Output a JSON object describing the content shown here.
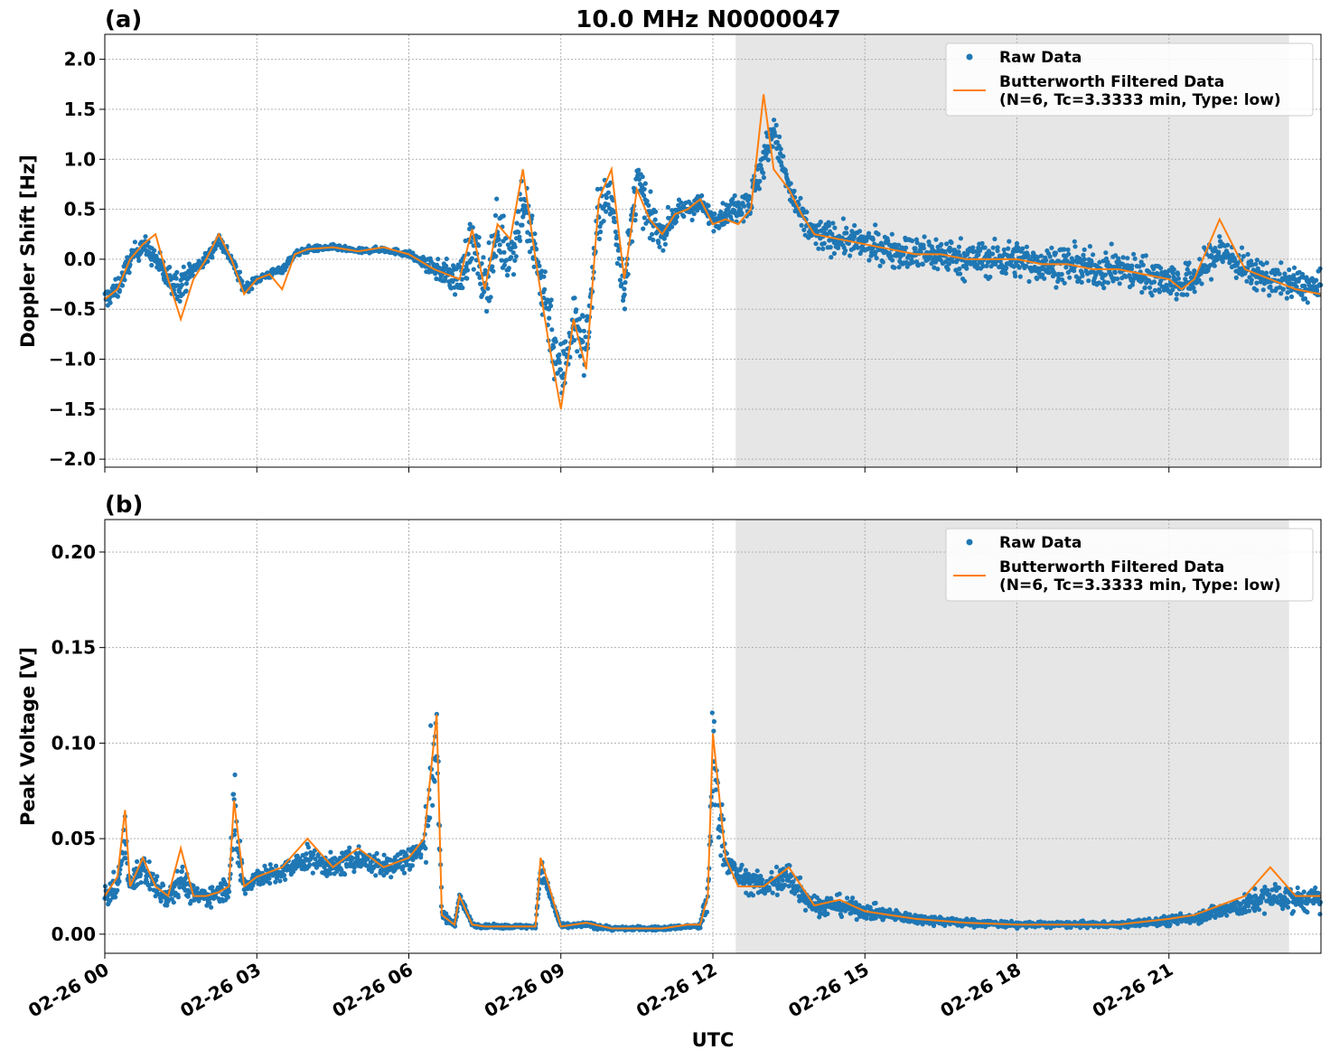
{
  "title": "10.0 MHz N0000047",
  "xlabel": "UTC",
  "x_tick_labels": [
    "02-26 00",
    "02-26 03",
    "02-26 06",
    "02-26 09",
    "02-26 12",
    "02-26 15",
    "02-26 18",
    "02-26 21"
  ],
  "colors": {
    "raw": "#1f77b4",
    "filtered": "#ff7f0e",
    "shade": "#e6e6e6",
    "grid": "#b0b0b0"
  },
  "legend": {
    "raw_label": "Raw Data",
    "filtered_label_line1": "Butterworth Filtered Data",
    "filtered_label_line2": "(N=6, Tc=3.3333 min, Type: low)",
    "placement": "top-right"
  },
  "chart_data": [
    {
      "type": "scatter",
      "panel_label": "(a)",
      "ylabel": "Doppler Shift [Hz]",
      "xlim_hours": [
        0,
        24
      ],
      "ylim": [
        -2.08,
        2.25
      ],
      "yticks": [
        -2.0,
        -1.5,
        -1.0,
        -0.5,
        0.0,
        0.5,
        1.0,
        1.5,
        2.0
      ],
      "ytick_labels": [
        "−2.0",
        "−1.5",
        "−1.0",
        "−0.5",
        "0.0",
        "0.5",
        "1.0",
        "1.5",
        "2.0"
      ],
      "grid": true,
      "shaded_interval_hours": [
        12.45,
        23.37
      ],
      "series": [
        {
          "name": "Raw Data",
          "kind": "scatter",
          "x_hours": [
            0,
            0.25,
            0.5,
            0.75,
            1.0,
            1.25,
            1.5,
            1.75,
            2.0,
            2.25,
            2.5,
            2.75,
            3.0,
            3.25,
            3.5,
            3.75,
            4.0,
            4.5,
            5.0,
            5.5,
            6.0,
            6.5,
            7.0,
            7.25,
            7.5,
            7.75,
            8.0,
            8.25,
            8.5,
            8.75,
            9.0,
            9.25,
            9.5,
            9.75,
            10.0,
            10.25,
            10.5,
            10.75,
            11.0,
            11.25,
            11.5,
            11.75,
            12.0,
            12.25,
            12.5,
            12.75,
            13.0,
            13.2,
            13.5,
            13.75,
            14.0,
            14.5,
            15.0,
            15.5,
            16.0,
            16.5,
            17.0,
            17.5,
            18.0,
            18.5,
            19.0,
            19.5,
            20.0,
            20.5,
            21.0,
            21.25,
            21.5,
            22.0,
            22.5,
            23.0,
            23.5,
            24.0
          ],
          "y_center": [
            -0.4,
            -0.3,
            0.0,
            0.15,
            0.0,
            -0.2,
            -0.25,
            -0.1,
            0.0,
            0.2,
            0.0,
            -0.3,
            -0.2,
            -0.15,
            -0.1,
            0.05,
            0.1,
            0.12,
            0.08,
            0.1,
            0.05,
            -0.1,
            -0.2,
            0.2,
            -0.3,
            0.3,
            0.0,
            0.6,
            0.0,
            -0.5,
            -1.2,
            -0.6,
            -0.9,
            0.5,
            0.6,
            -0.3,
            0.8,
            0.4,
            0.25,
            0.45,
            0.5,
            0.55,
            0.4,
            0.45,
            0.55,
            0.6,
            1.0,
            1.3,
            0.7,
            0.4,
            0.25,
            0.2,
            0.15,
            0.1,
            0.05,
            0.05,
            0.0,
            0.0,
            0.0,
            -0.05,
            -0.05,
            -0.1,
            -0.1,
            -0.15,
            -0.2,
            -0.25,
            -0.2,
            0.1,
            -0.1,
            -0.2,
            -0.25,
            -0.3
          ],
          "y_spread": [
            0.2,
            0.2,
            0.2,
            0.2,
            0.2,
            0.3,
            0.3,
            0.15,
            0.12,
            0.15,
            0.12,
            0.1,
            0.08,
            0.08,
            0.08,
            0.06,
            0.06,
            0.05,
            0.05,
            0.05,
            0.06,
            0.15,
            0.4,
            0.5,
            0.6,
            0.6,
            0.6,
            0.7,
            0.7,
            0.7,
            0.7,
            0.6,
            0.6,
            0.6,
            0.5,
            0.5,
            0.5,
            0.4,
            0.3,
            0.2,
            0.2,
            0.2,
            0.2,
            0.2,
            0.3,
            0.35,
            0.4,
            0.3,
            0.3,
            0.3,
            0.3,
            0.3,
            0.3,
            0.3,
            0.35,
            0.35,
            0.35,
            0.35,
            0.35,
            0.35,
            0.35,
            0.35,
            0.35,
            0.35,
            0.35,
            0.35,
            0.35,
            0.35,
            0.3,
            0.3,
            0.3,
            0.3
          ]
        },
        {
          "name": "Butterworth Filtered Data (N=6, Tc=3.3333 min, Type: low)",
          "kind": "line",
          "x_hours": [
            0,
            0.25,
            0.5,
            0.75,
            1.0,
            1.25,
            1.5,
            1.75,
            2.0,
            2.25,
            2.5,
            2.75,
            3.0,
            3.25,
            3.5,
            3.75,
            4.0,
            4.5,
            5.0,
            5.5,
            6.0,
            6.5,
            7.0,
            7.25,
            7.5,
            7.75,
            8.0,
            8.25,
            8.5,
            8.75,
            9.0,
            9.25,
            9.5,
            9.75,
            10.0,
            10.25,
            10.5,
            10.75,
            11.0,
            11.25,
            11.5,
            11.75,
            12.0,
            12.25,
            12.5,
            12.75,
            13.0,
            13.2,
            13.5,
            13.75,
            14.0,
            14.5,
            15.0,
            15.5,
            16.0,
            16.5,
            17.0,
            17.5,
            18.0,
            18.5,
            19.0,
            19.5,
            20.0,
            20.5,
            21.0,
            21.25,
            21.5,
            22.0,
            22.5,
            23.0,
            23.5,
            24.0
          ],
          "y": [
            -0.4,
            -0.3,
            0.0,
            0.15,
            0.25,
            -0.2,
            -0.6,
            -0.2,
            0.0,
            0.25,
            0.0,
            -0.35,
            -0.2,
            -0.15,
            -0.3,
            0.05,
            0.1,
            0.12,
            0.08,
            0.12,
            0.05,
            -0.1,
            -0.2,
            0.3,
            -0.3,
            0.35,
            0.2,
            0.9,
            0.0,
            -0.8,
            -1.5,
            -0.6,
            -1.1,
            0.6,
            0.9,
            -0.2,
            0.7,
            0.4,
            0.25,
            0.45,
            0.5,
            0.6,
            0.35,
            0.4,
            0.35,
            0.5,
            1.65,
            0.9,
            0.7,
            0.45,
            0.25,
            0.2,
            0.15,
            0.1,
            0.05,
            0.05,
            0.0,
            0.0,
            0.0,
            -0.05,
            -0.05,
            -0.1,
            -0.1,
            -0.15,
            -0.2,
            -0.3,
            -0.2,
            0.4,
            -0.1,
            -0.2,
            -0.3,
            -0.35
          ]
        }
      ]
    },
    {
      "type": "scatter",
      "panel_label": "(b)",
      "ylabel": "Peak Voltage [V]",
      "xlim_hours": [
        0,
        24
      ],
      "ylim": [
        -0.01,
        0.217
      ],
      "yticks": [
        0.0,
        0.05,
        0.1,
        0.15,
        0.2
      ],
      "ytick_labels": [
        "0.00",
        "0.05",
        "0.10",
        "0.15",
        "0.20"
      ],
      "grid": true,
      "shaded_interval_hours": [
        12.45,
        23.37
      ],
      "series": [
        {
          "name": "Raw Data",
          "kind": "scatter",
          "x_hours": [
            0,
            0.25,
            0.4,
            0.5,
            0.75,
            1.0,
            1.25,
            1.5,
            1.75,
            2.0,
            2.25,
            2.45,
            2.55,
            2.75,
            3.0,
            3.5,
            4.0,
            4.5,
            5.0,
            5.5,
            6.0,
            6.3,
            6.55,
            6.65,
            6.9,
            7.0,
            7.25,
            7.5,
            8.0,
            8.5,
            8.6,
            9.0,
            9.5,
            10.0,
            10.5,
            11.0,
            11.5,
            11.75,
            11.9,
            12.0,
            12.25,
            12.5,
            13.0,
            13.5,
            14.0,
            14.5,
            15.0,
            15.5,
            16.0,
            17.0,
            18.0,
            19.0,
            20.0,
            21.0,
            21.5,
            22.0,
            22.5,
            23.0,
            23.5,
            24.0
          ],
          "y_center": [
            0.02,
            0.025,
            0.05,
            0.025,
            0.035,
            0.025,
            0.02,
            0.03,
            0.02,
            0.02,
            0.022,
            0.025,
            0.06,
            0.025,
            0.03,
            0.032,
            0.04,
            0.035,
            0.04,
            0.035,
            0.04,
            0.045,
            0.11,
            0.01,
            0.005,
            0.02,
            0.005,
            0.004,
            0.004,
            0.004,
            0.035,
            0.004,
            0.005,
            0.003,
            0.003,
            0.003,
            0.004,
            0.004,
            0.02,
            0.09,
            0.04,
            0.03,
            0.025,
            0.03,
            0.015,
            0.015,
            0.012,
            0.01,
            0.008,
            0.006,
            0.005,
            0.005,
            0.005,
            0.007,
            0.009,
            0.012,
            0.015,
            0.02,
            0.018,
            0.018
          ],
          "y_spread": [
            0.012,
            0.012,
            0.025,
            0.012,
            0.015,
            0.015,
            0.012,
            0.015,
            0.01,
            0.01,
            0.01,
            0.012,
            0.05,
            0.01,
            0.01,
            0.01,
            0.012,
            0.012,
            0.012,
            0.012,
            0.015,
            0.015,
            0.08,
            0.005,
            0.004,
            0.005,
            0.002,
            0.002,
            0.002,
            0.002,
            0.01,
            0.002,
            0.003,
            0.002,
            0.002,
            0.002,
            0.002,
            0.003,
            0.02,
            0.07,
            0.015,
            0.012,
            0.012,
            0.02,
            0.01,
            0.01,
            0.008,
            0.006,
            0.005,
            0.004,
            0.003,
            0.003,
            0.003,
            0.005,
            0.006,
            0.008,
            0.01,
            0.015,
            0.012,
            0.012
          ]
        },
        {
          "name": "Butterworth Filtered Data (N=6, Tc=3.3333 min, Type: low)",
          "kind": "line",
          "x_hours": [
            0,
            0.25,
            0.4,
            0.5,
            0.75,
            1.0,
            1.25,
            1.5,
            1.75,
            2.0,
            2.25,
            2.45,
            2.55,
            2.75,
            3.0,
            3.5,
            4.0,
            4.5,
            5.0,
            5.5,
            6.0,
            6.3,
            6.55,
            6.65,
            6.9,
            7.0,
            7.25,
            7.5,
            8.0,
            8.5,
            8.6,
            9.0,
            9.5,
            10.0,
            10.5,
            11.0,
            11.5,
            11.75,
            11.9,
            12.0,
            12.25,
            12.5,
            13.0,
            13.5,
            14.0,
            14.5,
            15.0,
            15.5,
            16.0,
            17.0,
            18.0,
            19.0,
            20.0,
            21.0,
            21.5,
            22.0,
            22.5,
            23.0,
            23.5,
            24.0
          ],
          "y": [
            0.02,
            0.03,
            0.065,
            0.025,
            0.04,
            0.025,
            0.02,
            0.045,
            0.02,
            0.02,
            0.022,
            0.025,
            0.07,
            0.025,
            0.03,
            0.035,
            0.05,
            0.035,
            0.045,
            0.035,
            0.04,
            0.05,
            0.115,
            0.01,
            0.005,
            0.02,
            0.005,
            0.004,
            0.004,
            0.004,
            0.04,
            0.004,
            0.006,
            0.003,
            0.003,
            0.003,
            0.005,
            0.005,
            0.02,
            0.105,
            0.04,
            0.025,
            0.025,
            0.035,
            0.015,
            0.018,
            0.012,
            0.01,
            0.008,
            0.006,
            0.005,
            0.005,
            0.005,
            0.008,
            0.01,
            0.015,
            0.02,
            0.035,
            0.02,
            0.02
          ]
        }
      ]
    }
  ]
}
